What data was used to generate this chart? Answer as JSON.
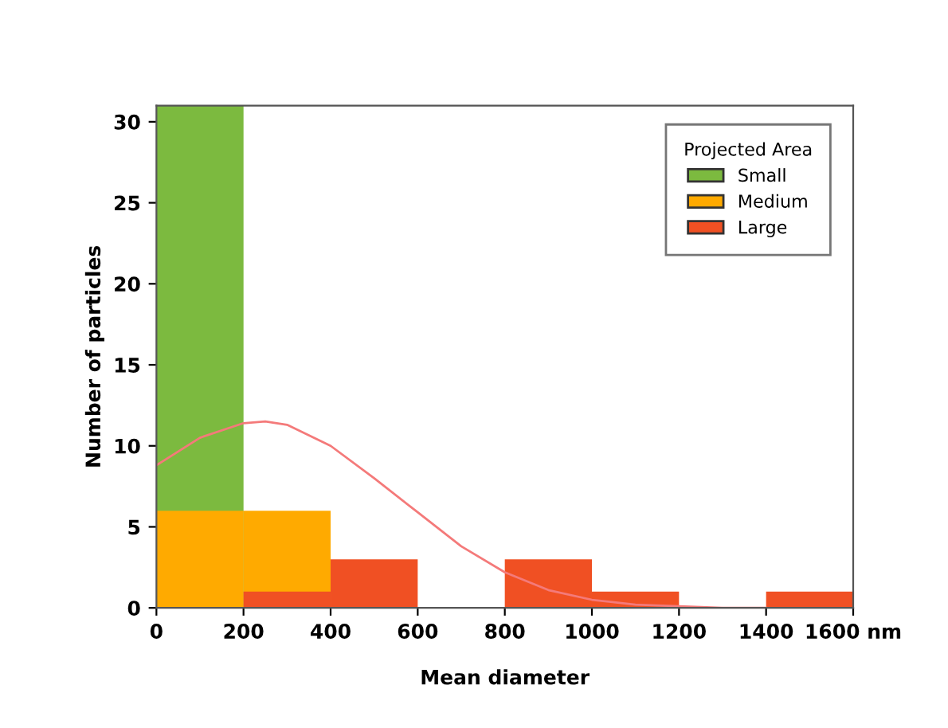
{
  "chart_data": {
    "type": "histogram",
    "xlabel": "Mean diameter",
    "ylabel": "Number of particles",
    "legend_title": "Projected Area",
    "bins": [
      0,
      200,
      400,
      600,
      800,
      1000,
      1200,
      1400,
      1600
    ],
    "series": [
      {
        "name": "Small",
        "color": "#7cba3f",
        "values": [
          31,
          0,
          0,
          0,
          0,
          0,
          0,
          0
        ]
      },
      {
        "name": "Medium",
        "color": "#ffaa00",
        "values": [
          6,
          6,
          0,
          0,
          0,
          0,
          0,
          0
        ]
      },
      {
        "name": "Large",
        "color": "#f05023",
        "values": [
          0,
          1,
          3,
          0,
          3,
          1,
          0,
          1
        ]
      },
      {
        "type": "line",
        "color": "#f47a7a",
        "x": [
          0,
          100,
          200,
          250,
          300,
          400,
          500,
          600,
          700,
          800,
          900,
          1000,
          1100,
          1200,
          1300,
          1400
        ],
        "values": [
          8.8,
          10.5,
          11.4,
          11.5,
          11.3,
          10,
          8,
          5.9,
          3.8,
          2.2,
          1.1,
          0.5,
          0.2,
          0.1,
          0,
          0
        ]
      }
    ],
    "xlim": [
      0,
      1600
    ],
    "xticks": [
      0,
      200,
      400,
      600,
      800,
      1000,
      1200,
      1400,
      {
        "value": 1600,
        "label": "1600 nm"
      }
    ],
    "ylim": [
      0,
      31
    ],
    "yticks": [
      0,
      5,
      10,
      15,
      20,
      25,
      30
    ],
    "legend": "top right",
    "grid": false
  }
}
